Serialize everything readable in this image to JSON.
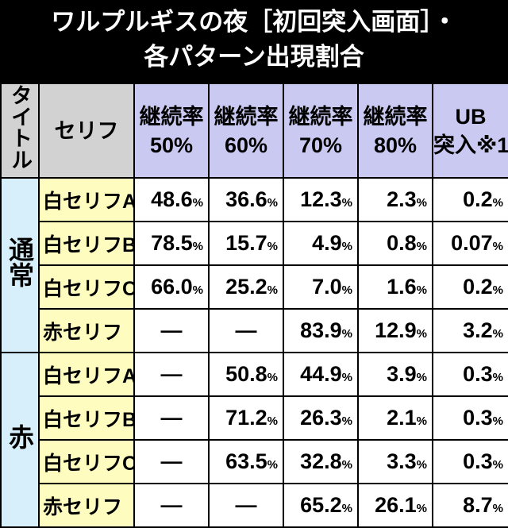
{
  "title": [
    "ワルプルギスの夜［初回突入画面］・",
    "各パターン出現割合"
  ],
  "table": {
    "header": [
      [
        "タイトル"
      ],
      [
        "セリフ"
      ],
      [
        "継続率",
        "50%"
      ],
      [
        "継続率",
        "60%"
      ],
      [
        "継続率",
        "70%"
      ],
      [
        "継続率",
        "80%"
      ],
      [
        "UB",
        "突入※1"
      ]
    ],
    "groups": [
      {
        "label": "通常",
        "rows": [
          {
            "label": "白セリフA",
            "cells": [
              "48.6%",
              "36.6%",
              "12.3%",
              "2.3%",
              "0.2%"
            ]
          },
          {
            "label": "白セリフB",
            "cells": [
              "78.5%",
              "15.7%",
              "4.9%",
              "0.8%",
              "0.07%"
            ]
          },
          {
            "label": "白セリフC",
            "cells": [
              "66.0%",
              "25.2%",
              "7.0%",
              "1.6%",
              "0.2%"
            ]
          },
          {
            "label": "赤セリフ",
            "cells": [
              "—",
              "—",
              "83.9%",
              "12.9%",
              "3.2%"
            ]
          }
        ]
      },
      {
        "label": "赤",
        "rows": [
          {
            "label": "白セリフA",
            "cells": [
              "—",
              "50.8%",
              "44.9%",
              "3.9%",
              "0.3%"
            ]
          },
          {
            "label": "白セリフB",
            "cells": [
              "—",
              "71.2%",
              "26.3%",
              "2.1%",
              "0.3%"
            ]
          },
          {
            "label": "白セリフC",
            "cells": [
              "—",
              "63.5%",
              "32.8%",
              "3.3%",
              "0.3%"
            ]
          },
          {
            "label": "赤セリフ",
            "cells": [
              "—",
              "—",
              "65.2%",
              "26.1%",
              "8.7%"
            ]
          }
        ]
      }
    ]
  }
}
